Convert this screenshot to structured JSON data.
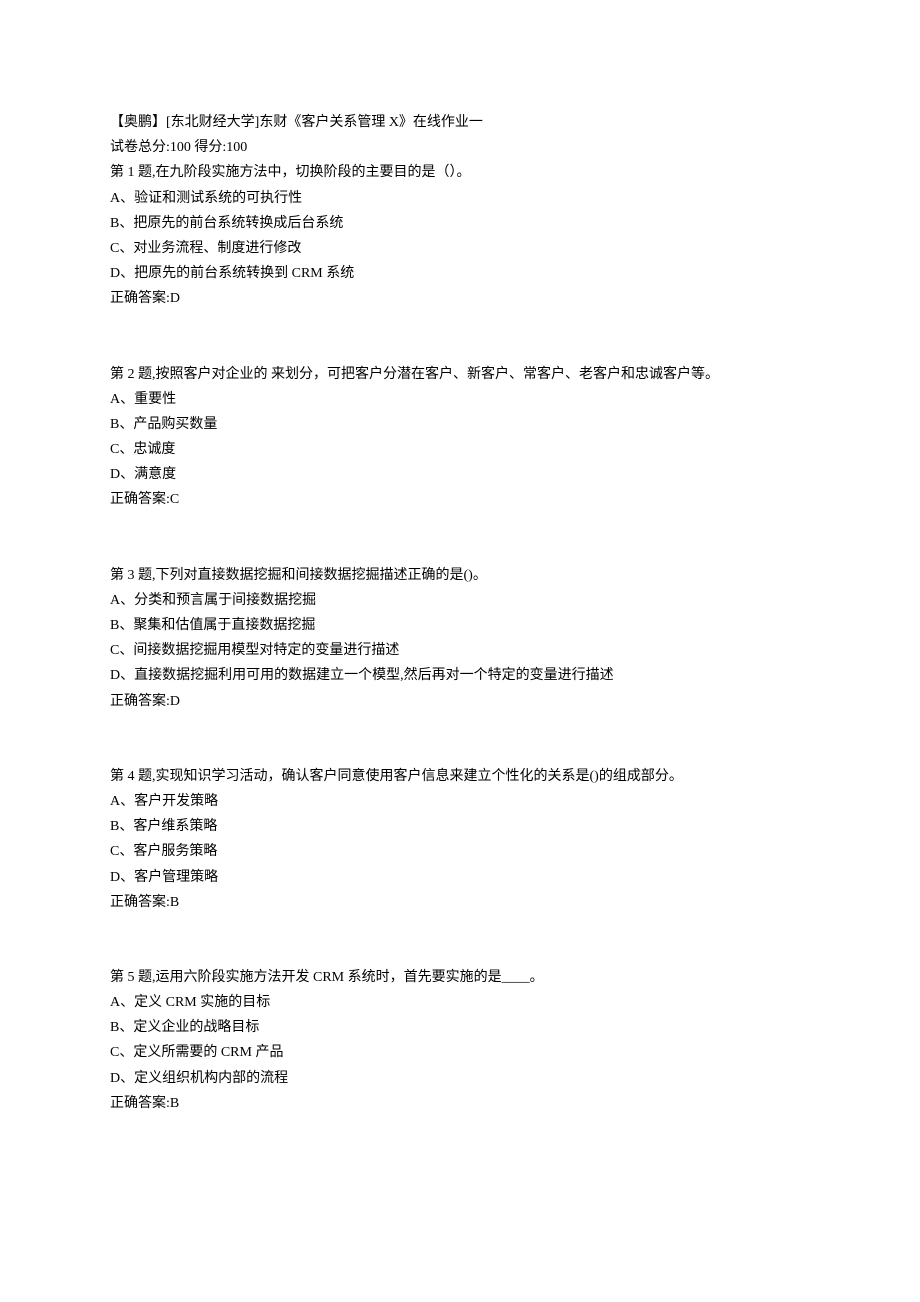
{
  "header": {
    "title": "【奥鹏】[东北财经大学]东财《客户关系管理 X》在线作业一",
    "scoreLine": "试卷总分:100      得分:100"
  },
  "questions": [
    {
      "prompt": "第 1 题,在九阶段实施方法中，切换阶段的主要目的是（）。",
      "options": [
        "A、验证和测试系统的可执行性",
        "B、把原先的前台系统转换成后台系统",
        "C、对业务流程、制度进行修改",
        "D、把原先的前台系统转换到 CRM 系统"
      ],
      "answer": "正确答案:D"
    },
    {
      "prompt": "第 2 题,按照客户对企业的      来划分，可把客户分潜在客户、新客户、常客户、老客户和忠诚客户等。",
      "options": [
        "A、重要性",
        "B、产品购买数量",
        "C、忠诚度",
        "D、满意度"
      ],
      "answer": "正确答案:C"
    },
    {
      "prompt": "第 3 题,下列对直接数据挖掘和间接数据挖掘描述正确的是()。",
      "options": [
        "A、分类和预言属于间接数据挖掘",
        "B、聚集和估值属于直接数据挖掘",
        "C、间接数据挖掘用模型对特定的变量进行描述",
        "D、直接数据挖掘利用可用的数据建立一个模型,然后再对一个特定的变量进行描述"
      ],
      "answer": "正确答案:D"
    },
    {
      "prompt": "第 4 题,实现知识学习活动，确认客户同意使用客户信息来建立个性化的关系是()的组成部分。",
      "options": [
        "A、客户开发策略",
        "B、客户维系策略",
        "C、客户服务策略",
        "D、客户管理策略"
      ],
      "answer": "正确答案:B"
    },
    {
      "prompt": "第 5 题,运用六阶段实施方法开发 CRM 系统时，首先要实施的是____。",
      "options": [
        "A、定义 CRM 实施的目标",
        "B、定义企业的战略目标",
        "C、定义所需要的 CRM 产品",
        "D、定义组织机构内部的流程"
      ],
      "answer": "正确答案:B"
    }
  ]
}
